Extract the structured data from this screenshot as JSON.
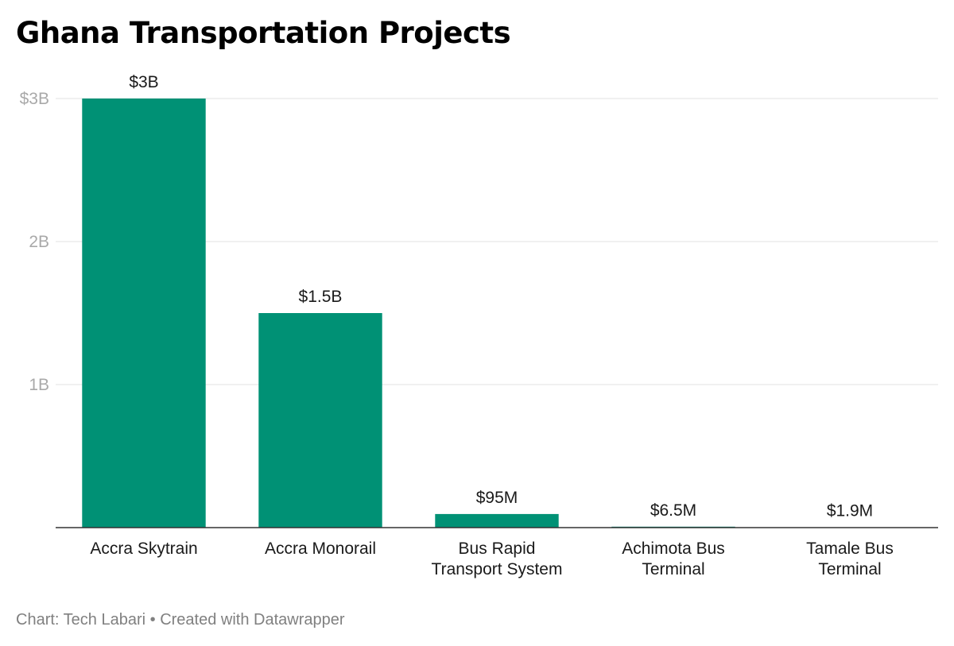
{
  "chart_data": {
    "type": "bar",
    "title": "Ghana Transportation Projects",
    "xlabel": "",
    "ylabel": "",
    "categories": [
      [
        "Accra Skytrain"
      ],
      [
        "Accra Monorail"
      ],
      [
        "Bus Rapid",
        "Transport System"
      ],
      [
        "Achimota Bus",
        "Terminal"
      ],
      [
        "Tamale Bus",
        "Terminal"
      ]
    ],
    "values": [
      3000000000,
      1500000000,
      95000000,
      6500000,
      1900000
    ],
    "value_labels": [
      "$3B",
      "$1.5B",
      "$95M",
      "$6.5M",
      "$1.9M"
    ],
    "ylim": [
      0,
      3000000000
    ],
    "yticks": [
      {
        "value": 1000000000,
        "label": "1B"
      },
      {
        "value": 2000000000,
        "label": "2B"
      },
      {
        "value": 3000000000,
        "label": "$3B"
      }
    ],
    "grid": true,
    "colors": {
      "bar": "#009175",
      "grid": "#e0e0e0",
      "axis": "#333333",
      "tick_text": "#a9a9a9",
      "text": "#1a1a1a"
    }
  },
  "footer": {
    "source": "Chart: Tech Labari",
    "separator": " • ",
    "credit": "Created with Datawrapper"
  }
}
